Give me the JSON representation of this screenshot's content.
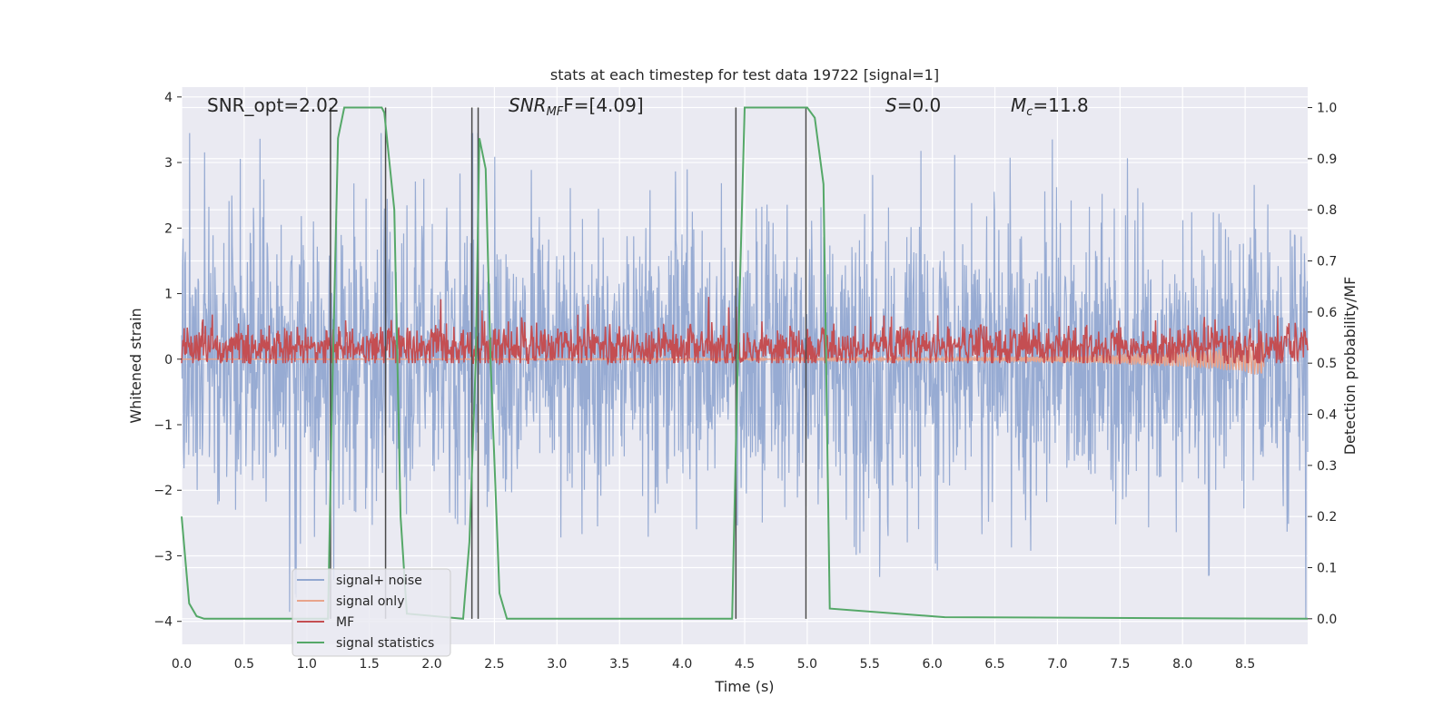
{
  "chart_data": {
    "type": "line",
    "title": "stats at each timestep for test data 19722 [signal=1]",
    "xlabel": "Time (s)",
    "ylabel": "Whitened strain",
    "y2label": "Detection probability/MF",
    "xlim": [
      0.0,
      9.0
    ],
    "ylim": [
      -4.35,
      4.15
    ],
    "y2lim": [
      -0.05,
      1.04
    ],
    "xticks": [
      0.0,
      0.5,
      1.0,
      1.5,
      2.0,
      2.5,
      3.0,
      3.5,
      4.0,
      4.5,
      5.0,
      5.5,
      6.0,
      6.5,
      7.0,
      7.5,
      8.0,
      8.5
    ],
    "xtick_labels": [
      "0.0",
      "0.5",
      "1.0",
      "1.5",
      "2.0",
      "2.5",
      "3.0",
      "3.5",
      "4.0",
      "4.5",
      "5.0",
      "5.5",
      "6.0",
      "6.5",
      "7.0",
      "7.5",
      "8.0",
      "8.5"
    ],
    "yticks": [
      4,
      3,
      2,
      1,
      0,
      -1,
      -2,
      -3,
      -4
    ],
    "ytick_labels": [
      "4",
      "3",
      "2",
      "1",
      "0",
      "−1",
      "−2",
      "−3",
      "−4"
    ],
    "y2ticks": [
      1.0,
      0.9,
      0.8,
      0.7,
      0.6,
      0.5,
      0.4,
      0.3,
      0.2,
      0.1,
      0.0
    ],
    "y2tick_labels": [
      "1.0",
      "0.9",
      "0.8",
      "0.7",
      "0.6",
      "0.5",
      "0.4",
      "0.3",
      "0.2",
      "0.1",
      "0.0"
    ],
    "grid": true,
    "legend_position": "lower-left",
    "annotations": {
      "snr_opt": "SNR_opt=2.02",
      "snr_mf_label": "SNR",
      "snr_mf_sub": "MF",
      "snr_mf_value": "F=[4.09]",
      "s_label": "S",
      "s_value": "=0.0",
      "mc_label": "M",
      "mc_sub": "c",
      "mc_value": "=11.8"
    },
    "series": [
      {
        "name": "signal+ noise",
        "color": "#92a8d1",
        "axis": "left",
        "style": "noise",
        "envelope": {
          "typical_amplitude": 1.8,
          "peak_amplitude": 3.45,
          "x_range": [
            0.0,
            9.0
          ]
        }
      },
      {
        "name": "signal only",
        "color": "#e8a48c",
        "axis": "left",
        "style": "chirp",
        "x": [
          0.0,
          6.0,
          7.0,
          7.5,
          8.0,
          8.3,
          8.5,
          8.6,
          8.65
        ],
        "amplitude": [
          0.0,
          0.02,
          0.05,
          0.08,
          0.12,
          0.16,
          0.2,
          0.25,
          0.3
        ]
      },
      {
        "name": "MF",
        "color": "#c44e52",
        "axis": "right",
        "style": "mf",
        "baseline": 0.53,
        "spread": 0.04,
        "x_range": [
          0.0,
          9.0
        ]
      },
      {
        "name": "signal statistics",
        "color": "#55a868",
        "axis": "right",
        "x": [
          0.0,
          0.06,
          0.12,
          0.18,
          1.17,
          1.2,
          1.25,
          1.3,
          1.6,
          1.62,
          1.7,
          1.75,
          1.8,
          2.25,
          2.3,
          2.35,
          2.38,
          2.43,
          2.47,
          2.54,
          2.6,
          4.4,
          4.44,
          4.5,
          5.0,
          5.06,
          5.13,
          5.18,
          6.1,
          9.0
        ],
        "y": [
          0.2,
          0.03,
          0.005,
          0.0,
          0.0,
          0.4,
          0.94,
          1.0,
          1.0,
          0.99,
          0.8,
          0.2,
          0.01,
          0.0,
          0.15,
          0.5,
          0.94,
          0.88,
          0.5,
          0.05,
          0.0,
          0.0,
          0.45,
          1.0,
          1.0,
          0.98,
          0.85,
          0.02,
          0.003,
          0.0
        ]
      }
    ],
    "vertical_lines": [
      {
        "x": 1.19,
        "y_range": [
          0.0,
          1.0
        ]
      },
      {
        "x": 1.63,
        "y_range": [
          0.0,
          1.0
        ]
      },
      {
        "x": 2.32,
        "y_range": [
          0.0,
          1.0
        ]
      },
      {
        "x": 2.37,
        "y_range": [
          0.0,
          1.0
        ]
      },
      {
        "x": 4.43,
        "y_range": [
          0.0,
          1.0
        ]
      },
      {
        "x": 4.99,
        "y_range": [
          0.0,
          1.0
        ]
      }
    ],
    "vertical_line_color": "#4a4a4a"
  }
}
